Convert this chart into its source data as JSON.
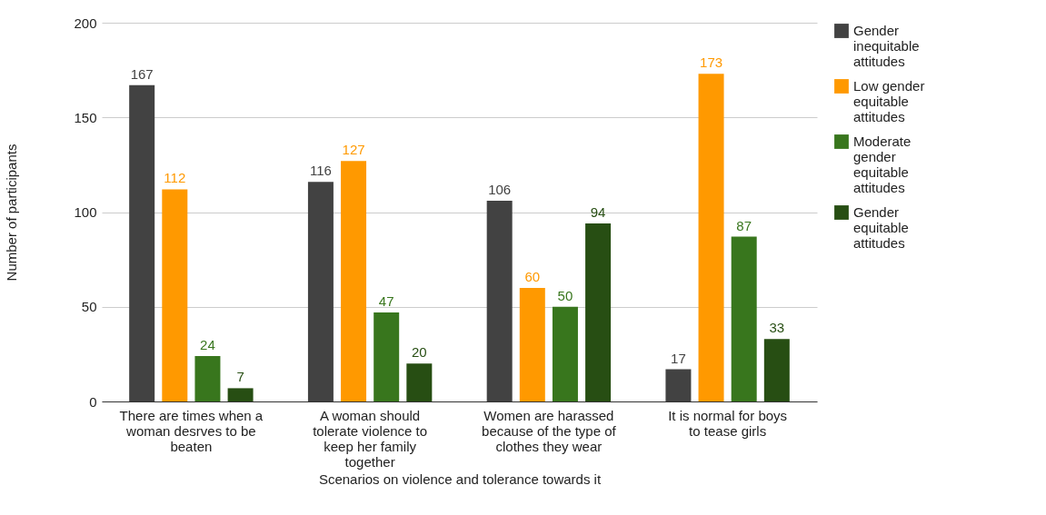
{
  "chart_data": {
    "type": "bar",
    "xlabel": "Scenarios on violence and tolerance towards it",
    "ylabel": "Number of participants",
    "categories": [
      "There are times when a woman desrves to be beaten",
      "A woman should tolerate violence to keep her family together",
      "Women are harassed because of the type of clothes they wear",
      "It is normal for boys to tease girls"
    ],
    "series": [
      {
        "name": "Gender inequitable attitudes",
        "color": "#424242",
        "values": [
          167,
          116,
          106,
          17
        ]
      },
      {
        "name": "Low gender equitable attitudes",
        "color": "#ff9900",
        "values": [
          112,
          127,
          60,
          173
        ]
      },
      {
        "name": "Moderate gender equitable attitudes",
        "color": "#38761d",
        "values": [
          24,
          47,
          50,
          87
        ]
      },
      {
        "name": "Gender equitable attitudes",
        "color": "#274e13",
        "values": [
          7,
          20,
          94,
          33
        ]
      }
    ],
    "ylim": [
      0,
      200
    ],
    "yticks": [
      0,
      50,
      100,
      150,
      200
    ],
    "grid": "y",
    "legend": "right",
    "data_labels": true
  }
}
